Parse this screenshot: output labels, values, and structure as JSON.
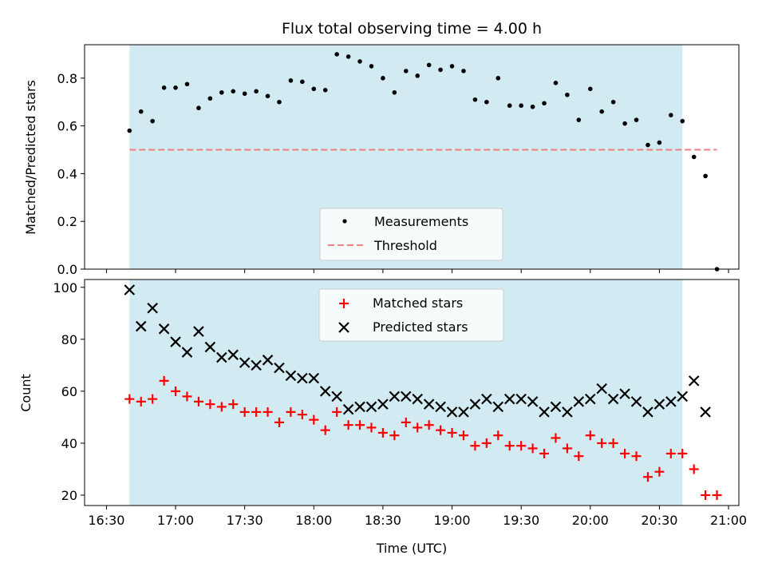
{
  "chart_data": [
    {
      "type": "scatter",
      "title": "Flux total observing time = 4.00 h",
      "xlabel": "",
      "ylabel": "Matched/Predicted stars",
      "ylim": [
        0,
        0.94
      ],
      "yticks": [
        0.0,
        0.2,
        0.4,
        0.6,
        0.8
      ],
      "ytick_labels": [
        "0.0",
        "0.2",
        "0.4",
        "0.6",
        "0.8"
      ],
      "shaded_interval": [
        "16:40",
        "20:40"
      ],
      "shade_color": "#add8e6",
      "legend_position": "lower center",
      "series": [
        {
          "name": "Measurements",
          "marker": "dot",
          "color": "#000000",
          "x": [
            "16:40",
            "16:45",
            "16:50",
            "16:55",
            "17:00",
            "17:05",
            "17:10",
            "17:15",
            "17:20",
            "17:25",
            "17:30",
            "17:35",
            "17:40",
            "17:45",
            "17:50",
            "17:55",
            "18:00",
            "18:05",
            "18:10",
            "18:15",
            "18:20",
            "18:25",
            "18:30",
            "18:35",
            "18:40",
            "18:45",
            "18:50",
            "18:55",
            "19:00",
            "19:05",
            "19:10",
            "19:15",
            "19:20",
            "19:25",
            "19:30",
            "19:35",
            "19:40",
            "19:45",
            "19:50",
            "19:55",
            "20:00",
            "20:05",
            "20:10",
            "20:15",
            "20:20",
            "20:25",
            "20:30",
            "20:35",
            "20:40",
            "20:45",
            "20:50",
            "20:55"
          ],
          "y": [
            0.58,
            0.66,
            0.62,
            0.76,
            0.76,
            0.775,
            0.675,
            0.715,
            0.74,
            0.745,
            0.735,
            0.745,
            0.725,
            0.7,
            0.79,
            0.785,
            0.755,
            0.75,
            0.9,
            0.89,
            0.87,
            0.85,
            0.8,
            0.74,
            0.83,
            0.81,
            0.855,
            0.835,
            0.85,
            0.83,
            0.71,
            0.7,
            0.8,
            0.685,
            0.685,
            0.68,
            0.695,
            0.78,
            0.73,
            0.625,
            0.755,
            0.66,
            0.7,
            0.61,
            0.625,
            0.52,
            0.53,
            0.645,
            0.62,
            0.47,
            0.39,
            0.0
          ]
        },
        {
          "name": "Threshold",
          "line_style": "dashed",
          "color": "#f08080",
          "x": [
            "16:40",
            "20:55"
          ],
          "y": [
            0.5,
            0.5
          ]
        }
      ]
    },
    {
      "type": "scatter",
      "title": "",
      "xlabel": "Time (UTC)",
      "ylabel": "Count",
      "ylim": [
        16,
        103
      ],
      "yticks": [
        20,
        40,
        60,
        80,
        100
      ],
      "ytick_labels": [
        "20",
        "40",
        "60",
        "80",
        "100"
      ],
      "xticks": [
        "16:30",
        "17:00",
        "17:30",
        "18:00",
        "18:30",
        "19:00",
        "19:30",
        "20:00",
        "20:30",
        "21:00"
      ],
      "shaded_interval": [
        "16:40",
        "20:40"
      ],
      "shade_color": "#add8e6",
      "legend_position": "upper center",
      "series": [
        {
          "name": "Matched stars",
          "marker": "plus",
          "color": "#ff0000",
          "x": [
            "16:40",
            "16:45",
            "16:50",
            "16:55",
            "17:00",
            "17:05",
            "17:10",
            "17:15",
            "17:20",
            "17:25",
            "17:30",
            "17:35",
            "17:40",
            "17:45",
            "17:50",
            "17:55",
            "18:00",
            "18:05",
            "18:10",
            "18:15",
            "18:20",
            "18:25",
            "18:30",
            "18:35",
            "18:40",
            "18:45",
            "18:50",
            "18:55",
            "19:00",
            "19:05",
            "19:10",
            "19:15",
            "19:20",
            "19:25",
            "19:30",
            "19:35",
            "19:40",
            "19:45",
            "19:50",
            "19:55",
            "20:00",
            "20:05",
            "20:10",
            "20:15",
            "20:20",
            "20:25",
            "20:30",
            "20:35",
            "20:40",
            "20:45",
            "20:50",
            "20:55"
          ],
          "y": [
            57,
            56,
            57,
            64,
            60,
            58,
            56,
            55,
            54,
            55,
            52,
            52,
            52,
            48,
            52,
            51,
            49,
            45,
            52,
            47,
            47,
            46,
            44,
            43,
            48,
            46,
            47,
            45,
            44,
            43,
            39,
            40,
            43,
            39,
            39,
            38,
            36,
            42,
            38,
            35,
            43,
            40,
            40,
            36,
            35,
            27,
            29,
            36,
            36,
            30,
            20,
            20
          ]
        },
        {
          "name": "Predicted stars",
          "marker": "x",
          "color": "#000000",
          "x": [
            "16:40",
            "16:45",
            "16:50",
            "16:55",
            "17:00",
            "17:05",
            "17:10",
            "17:15",
            "17:20",
            "17:25",
            "17:30",
            "17:35",
            "17:40",
            "17:45",
            "17:50",
            "17:55",
            "18:00",
            "18:05",
            "18:10",
            "18:15",
            "18:20",
            "18:25",
            "18:30",
            "18:35",
            "18:40",
            "18:45",
            "18:50",
            "18:55",
            "19:00",
            "19:05",
            "19:10",
            "19:15",
            "19:20",
            "19:25",
            "19:30",
            "19:35",
            "19:40",
            "19:45",
            "19:50",
            "19:55",
            "20:00",
            "20:05",
            "20:10",
            "20:15",
            "20:20",
            "20:25",
            "20:30",
            "20:35",
            "20:40",
            "20:45",
            "20:50"
          ],
          "y": [
            99,
            85,
            92,
            84,
            79,
            75,
            83,
            77,
            73,
            74,
            71,
            70,
            72,
            69,
            66,
            65,
            65,
            60,
            58,
            53,
            54,
            54,
            55,
            58,
            58,
            57,
            55,
            54,
            52,
            52,
            55,
            57,
            54,
            57,
            57,
            56,
            52,
            54,
            52,
            56,
            57,
            61,
            57,
            59,
            56,
            52,
            55,
            56,
            58,
            64,
            52
          ]
        }
      ]
    }
  ]
}
